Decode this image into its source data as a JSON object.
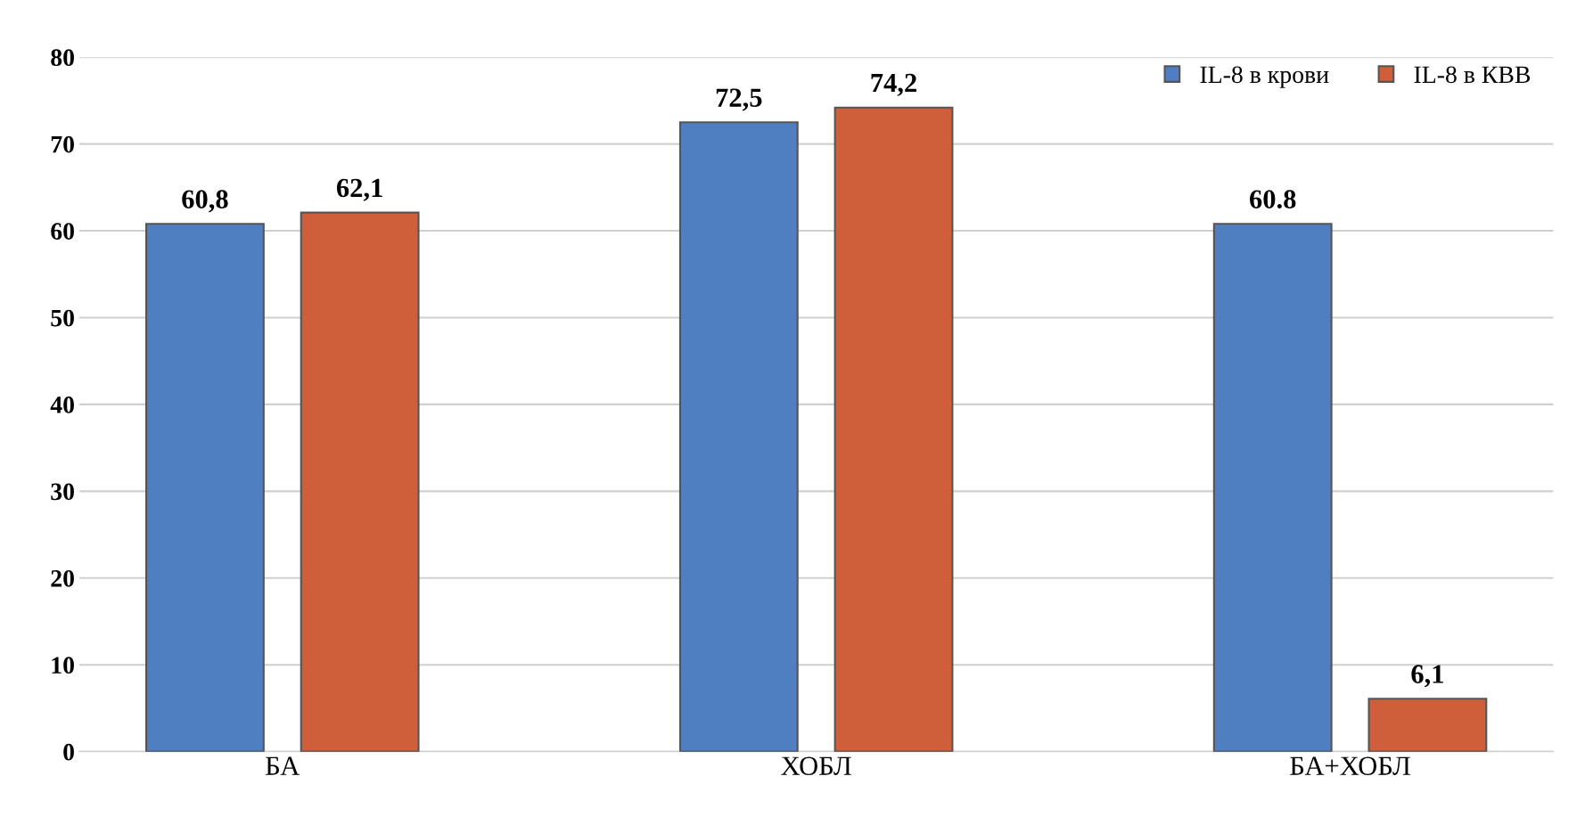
{
  "chart_data": {
    "type": "bar",
    "categories": [
      "БА",
      "ХОБЛ",
      "БА+ХОБЛ"
    ],
    "series": [
      {
        "name": "IL-8 в крови",
        "color": "#4f7fc0",
        "values": [
          60.8,
          72.5,
          60.8
        ],
        "value_labels": [
          "60,8",
          "72,5",
          "60.8"
        ]
      },
      {
        "name": "IL-8 в КВВ",
        "color": "#cf5f3a",
        "values": [
          62.1,
          74.2,
          6.1
        ],
        "value_labels": [
          "62,1",
          "74,2",
          "6,1"
        ]
      }
    ],
    "ylim": [
      0,
      80
    ],
    "yticks": [
      0,
      10,
      20,
      30,
      40,
      50,
      60,
      70,
      80
    ],
    "grid": "y",
    "legend": "top right"
  }
}
